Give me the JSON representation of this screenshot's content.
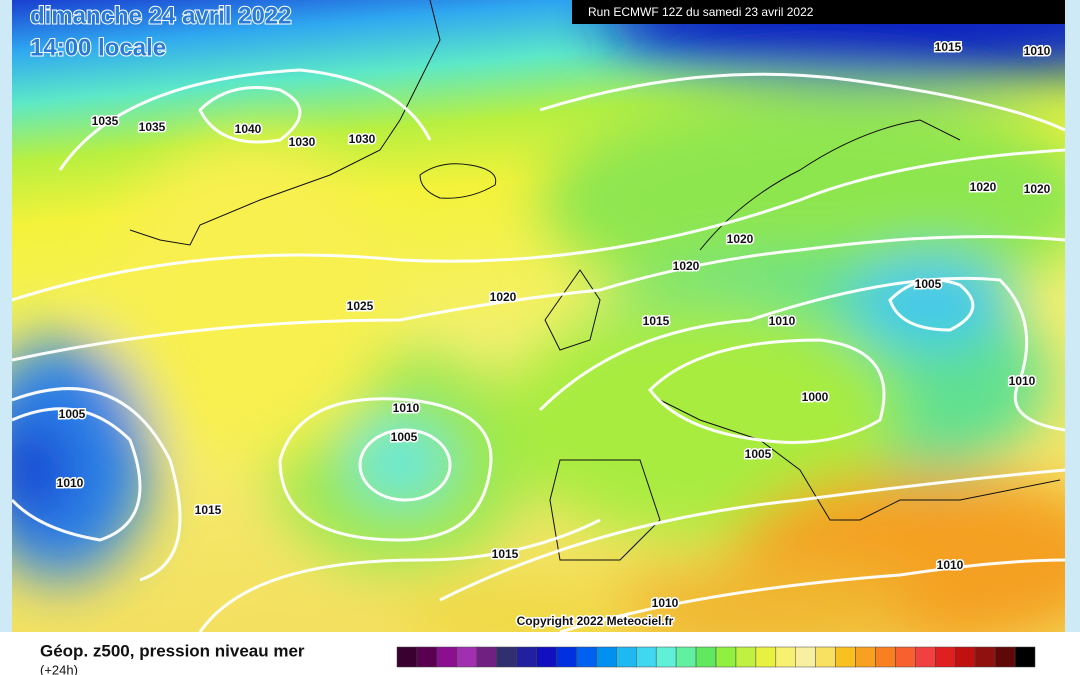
{
  "header": {
    "date": "dimanche 24 avril 2022",
    "time": "14:00 locale",
    "run": "Run ECMWF 12Z du samedi 23 avril 2022"
  },
  "isobar_labels": [
    "1015",
    "1010",
    "1035",
    "1035",
    "1040",
    "1030",
    "1030",
    "1020",
    "1020",
    "1020",
    "1020",
    "1020",
    "1025",
    "1015",
    "1010",
    "1005",
    "1010",
    "1000",
    "1005",
    "1010",
    "1005",
    "1010",
    "1015",
    "1005",
    "1015",
    "1010",
    "1010"
  ],
  "copyright": "Copyright 2022 Meteociel.fr",
  "legend": {
    "title": "Géop. z500, pression niveau mer",
    "subtitle": "(+24h)"
  }
}
